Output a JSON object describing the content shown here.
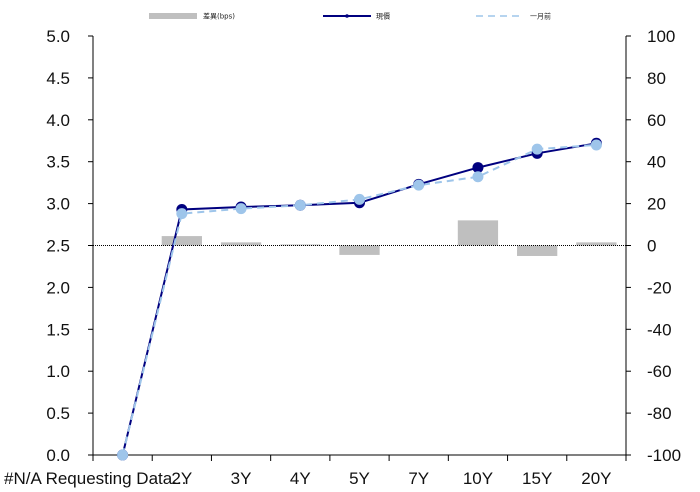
{
  "chart_data": {
    "type": "bar+line",
    "categories": [
      "#N/A Requesting Data...",
      "2Y",
      "3Y",
      "4Y",
      "5Y",
      "7Y",
      "10Y",
      "15Y",
      "20Y"
    ],
    "left_axis": {
      "min": 0.0,
      "max": 5.0,
      "step": 0.5,
      "tick_labels": [
        "0.0",
        "0.5",
        "1.0",
        "1.5",
        "2.0",
        "2.5",
        "3.0",
        "3.5",
        "4.0",
        "4.5",
        "5.0"
      ]
    },
    "right_axis": {
      "min": -100,
      "max": 100,
      "step": 20,
      "tick_labels": [
        "-100",
        "-80",
        "-60",
        "-40",
        "-20",
        "0",
        "20",
        "40",
        "60",
        "80",
        "100"
      ]
    },
    "series": [
      {
        "name": "差異(bps)",
        "type": "bar",
        "axis": "right",
        "color": "#bfbfbf",
        "values": [
          null,
          4.5,
          1.5,
          0.5,
          -4.5,
          0,
          12,
          -5,
          1.5
        ]
      },
      {
        "name": "現價",
        "type": "line",
        "axis": "left",
        "color": "#00007f",
        "marker": "circle",
        "values": [
          0.0,
          2.93,
          2.96,
          2.98,
          3.01,
          3.23,
          3.43,
          3.6,
          3.72
        ]
      },
      {
        "name": "一月前",
        "type": "line",
        "axis": "left",
        "color": "#9ec5ea",
        "dash": true,
        "marker": "circle",
        "values": [
          0.0,
          2.88,
          2.94,
          2.98,
          3.05,
          3.22,
          3.32,
          3.65,
          3.7
        ]
      }
    ],
    "legend": {
      "position": "top",
      "items": [
        "差異(bps)",
        "現價",
        "一月前"
      ]
    },
    "grid": false
  }
}
